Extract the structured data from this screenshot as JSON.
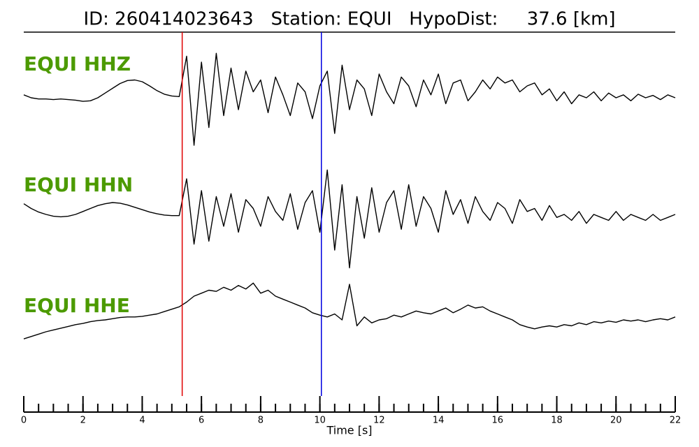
{
  "chart_data": {
    "type": "line",
    "title": "ID: 260414023643   Station: EQUI   HypoDist:     37.6 [km]",
    "x_label": "Time [s]",
    "xlim": [
      0,
      22
    ],
    "xticks": [
      0,
      2,
      4,
      6,
      8,
      10,
      12,
      14,
      16,
      18,
      20,
      22
    ],
    "xminor_step": 0.5,
    "markers": [
      {
        "x": 5.35,
        "color": "#e00000"
      },
      {
        "x": 10.05,
        "color": "#0000e0"
      }
    ],
    "x": [
      0,
      0.25,
      0.5,
      0.75,
      1,
      1.25,
      1.5,
      1.75,
      2,
      2.25,
      2.5,
      2.75,
      3,
      3.25,
      3.5,
      3.75,
      4,
      4.25,
      4.5,
      4.75,
      5,
      5.25,
      5.5,
      5.75,
      6,
      6.25,
      6.5,
      6.75,
      7,
      7.25,
      7.5,
      7.75,
      8,
      8.25,
      8.5,
      8.75,
      9,
      9.25,
      9.5,
      9.75,
      10,
      10.25,
      10.5,
      10.75,
      11,
      11.25,
      11.5,
      11.75,
      12,
      12.25,
      12.5,
      12.75,
      13,
      13.25,
      13.5,
      13.75,
      14,
      14.25,
      14.5,
      14.75,
      15,
      15.25,
      15.5,
      15.75,
      16,
      16.25,
      16.5,
      16.75,
      17,
      17.25,
      17.5,
      17.75,
      18,
      18.25,
      18.5,
      18.75,
      19,
      19.25,
      19.5,
      19.75,
      20,
      20.25,
      20.5,
      20.75,
      21,
      21.25,
      21.5,
      21.75,
      22
    ],
    "series": [
      {
        "name": "EQUI HHZ",
        "color": "#000000",
        "values": [
          0.05,
          0.0,
          -0.02,
          -0.02,
          -0.03,
          -0.02,
          -0.03,
          -0.04,
          -0.06,
          -0.05,
          0.0,
          0.08,
          0.16,
          0.24,
          0.29,
          0.3,
          0.27,
          0.2,
          0.12,
          0.06,
          0.03,
          0.02,
          0.7,
          -0.8,
          0.6,
          -0.5,
          0.75,
          -0.3,
          0.5,
          -0.2,
          0.45,
          0.1,
          0.3,
          -0.25,
          0.35,
          0.05,
          -0.3,
          0.25,
          0.1,
          -0.35,
          0.2,
          0.45,
          -0.6,
          0.55,
          -0.2,
          0.3,
          0.15,
          -0.3,
          0.4,
          0.1,
          -0.1,
          0.35,
          0.2,
          -0.15,
          0.3,
          0.05,
          0.4,
          -0.1,
          0.25,
          0.3,
          -0.05,
          0.1,
          0.3,
          0.15,
          0.35,
          0.25,
          0.3,
          0.1,
          0.2,
          0.25,
          0.05,
          0.15,
          -0.05,
          0.1,
          -0.1,
          0.05,
          0.0,
          0.1,
          -0.05,
          0.08,
          0.0,
          0.05,
          -0.05,
          0.06,
          0.0,
          0.04,
          -0.03,
          0.05,
          0.0
        ]
      },
      {
        "name": "EQUI HHN",
        "color": "#000000",
        "values": [
          0.18,
          0.1,
          0.04,
          0.0,
          -0.03,
          -0.04,
          -0.03,
          0.0,
          0.05,
          0.1,
          0.15,
          0.18,
          0.2,
          0.19,
          0.16,
          0.12,
          0.08,
          0.04,
          0.01,
          -0.01,
          -0.02,
          -0.02,
          0.6,
          -0.5,
          0.4,
          -0.45,
          0.3,
          -0.2,
          0.35,
          -0.3,
          0.25,
          0.1,
          -0.2,
          0.3,
          0.05,
          -0.1,
          0.35,
          -0.25,
          0.2,
          0.4,
          -0.3,
          0.75,
          -0.6,
          0.5,
          -0.9,
          0.3,
          -0.4,
          0.45,
          -0.3,
          0.2,
          0.4,
          -0.25,
          0.5,
          -0.2,
          0.3,
          0.1,
          -0.3,
          0.4,
          0.0,
          0.25,
          -0.15,
          0.3,
          0.05,
          -0.1,
          0.2,
          0.1,
          -0.15,
          0.25,
          0.05,
          0.1,
          -0.1,
          0.15,
          -0.05,
          0.0,
          -0.1,
          0.05,
          -0.15,
          0.0,
          -0.05,
          -0.1,
          0.05,
          -0.1,
          0.0,
          -0.05,
          -0.1,
          0.0,
          -0.1,
          -0.05,
          0.0
        ]
      },
      {
        "name": "EQUI HHE",
        "color": "#000000",
        "values": [
          -0.32,
          -0.28,
          -0.24,
          -0.2,
          -0.17,
          -0.14,
          -0.11,
          -0.08,
          -0.06,
          -0.03,
          -0.01,
          0.0,
          0.02,
          0.04,
          0.05,
          0.05,
          0.06,
          0.08,
          0.1,
          0.14,
          0.18,
          0.22,
          0.3,
          0.4,
          0.45,
          0.5,
          0.48,
          0.55,
          0.5,
          0.58,
          0.52,
          0.62,
          0.45,
          0.5,
          0.4,
          0.35,
          0.3,
          0.25,
          0.2,
          0.12,
          0.08,
          0.05,
          0.1,
          0.0,
          0.6,
          -0.1,
          0.05,
          -0.05,
          0.0,
          0.02,
          0.08,
          0.05,
          0.1,
          0.15,
          0.12,
          0.1,
          0.15,
          0.2,
          0.12,
          0.18,
          0.25,
          0.2,
          0.22,
          0.15,
          0.1,
          0.05,
          0.0,
          -0.08,
          -0.12,
          -0.15,
          -0.12,
          -0.1,
          -0.12,
          -0.08,
          -0.1,
          -0.05,
          -0.08,
          -0.03,
          -0.05,
          -0.02,
          -0.04,
          0.0,
          -0.02,
          0.0,
          -0.03,
          0.0,
          0.02,
          0.0,
          0.05
        ]
      }
    ]
  }
}
